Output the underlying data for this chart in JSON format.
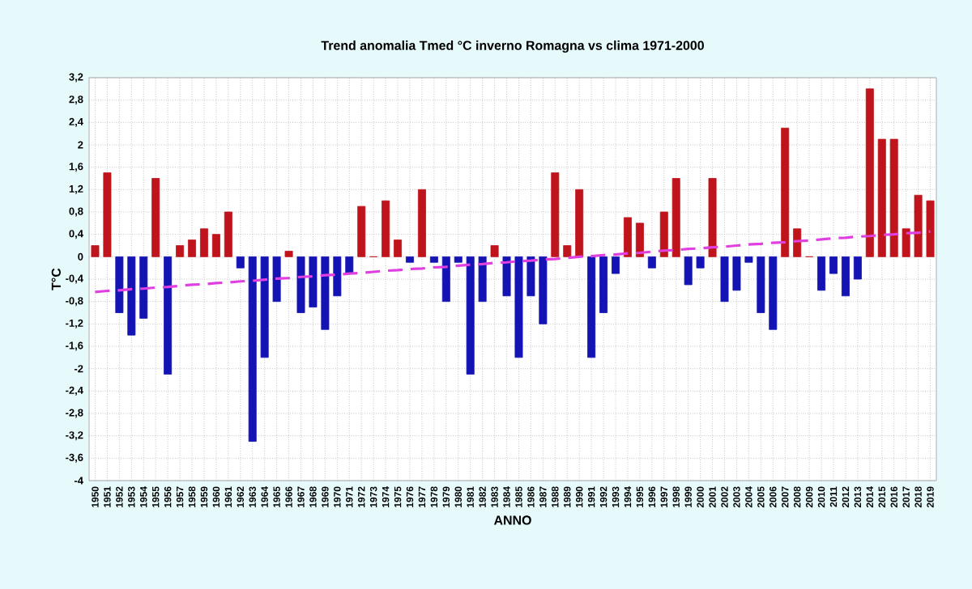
{
  "chart_data": {
    "type": "bar",
    "title": "Trend anomalia Tmed °C inverno Romagna vs clima 1971-2000",
    "xlabel": "ANNO",
    "ylabel": "T°C",
    "categories": [
      "1950",
      "1951",
      "1952",
      "1953",
      "1954",
      "1955",
      "1956",
      "1957",
      "1958",
      "1959",
      "1960",
      "1961",
      "1962",
      "1963",
      "1964",
      "1965",
      "1966",
      "1967",
      "1968",
      "1969",
      "1970",
      "1971",
      "1972",
      "1973",
      "1974",
      "1975",
      "1976",
      "1977",
      "1978",
      "1979",
      "1980",
      "1981",
      "1982",
      "1983",
      "1984",
      "1985",
      "1986",
      "1987",
      "1988",
      "1989",
      "1990",
      "1991",
      "1992",
      "1993",
      "1994",
      "1995",
      "1996",
      "1997",
      "1998",
      "1999",
      "2000",
      "2001",
      "2002",
      "2003",
      "2004",
      "2005",
      "2006",
      "2007",
      "2008",
      "2009",
      "2010",
      "2011",
      "2012",
      "2013",
      "2014",
      "2015",
      "2016",
      "2017",
      "2018",
      "2019"
    ],
    "series": [
      {
        "values": [
          0.2,
          1.5,
          -1.0,
          -1.4,
          -1.1,
          1.4,
          -2.1,
          0.2,
          0.3,
          0.5,
          0.4,
          0.8,
          -0.2,
          -3.3,
          -1.8,
          -0.8,
          0.1,
          -1.0,
          -0.9,
          -1.3,
          -0.7,
          -0.3,
          0.9,
          0.0,
          1.0,
          0.3,
          -0.1,
          1.2,
          -0.1,
          -0.8,
          -0.1,
          -2.1,
          -0.8,
          0.2,
          -0.7,
          -1.8,
          -0.7,
          -1.2,
          1.5,
          0.2,
          1.2,
          -1.8,
          -1.0,
          -0.3,
          0.7,
          0.6,
          -0.2,
          0.8,
          1.4,
          -0.5,
          -0.2,
          1.4,
          -0.8,
          -0.6,
          -0.1,
          -1.0,
          -1.3,
          2.3,
          0.5,
          0.0,
          -0.6,
          -0.3,
          -0.7,
          -0.4,
          3.0,
          2.1,
          2.1,
          0.5,
          1.1,
          1.0
        ],
        "colors": [
          "#c0141c",
          "#c0141c",
          "#1414b4",
          "#1414b4",
          "#1414b4",
          "#c0141c",
          "#1414b4",
          "#c0141c",
          "#c0141c",
          "#c0141c",
          "#c0141c",
          "#c0141c",
          "#1414b4",
          "#1414b4",
          "#1414b4",
          "#1414b4",
          "#c0141c",
          "#1414b4",
          "#1414b4",
          "#1414b4",
          "#1414b4",
          "#1414b4",
          "#c0141c",
          "#c0141c",
          "#c0141c",
          "#c0141c",
          "#1414b4",
          "#c0141c",
          "#1414b4",
          "#1414b4",
          "#1414b4",
          "#1414b4",
          "#1414b4",
          "#c0141c",
          "#1414b4",
          "#1414b4",
          "#1414b4",
          "#1414b4",
          "#c0141c",
          "#c0141c",
          "#c0141c",
          "#1414b4",
          "#1414b4",
          "#1414b4",
          "#c0141c",
          "#c0141c",
          "#1414b4",
          "#c0141c",
          "#c0141c",
          "#1414b4",
          "#1414b4",
          "#c0141c",
          "#1414b4",
          "#1414b4",
          "#1414b4",
          "#1414b4",
          "#1414b4",
          "#c0141c",
          "#c0141c",
          "#c0141c",
          "#1414b4",
          "#1414b4",
          "#1414b4",
          "#1414b4",
          "#c0141c",
          "#c0141c",
          "#c0141c",
          "#c0141c",
          "#c0141c",
          "#c0141c"
        ]
      },
      {
        "type": "line",
        "values": [
          -0.63,
          -0.61,
          -0.6,
          -0.58,
          -0.57,
          -0.55,
          -0.54,
          -0.52,
          -0.5,
          -0.49,
          -0.47,
          -0.46,
          -0.44,
          -0.43,
          -0.41,
          -0.39,
          -0.38,
          -0.36,
          -0.35,
          -0.33,
          -0.32,
          -0.3,
          -0.29,
          -0.27,
          -0.25,
          -0.24,
          -0.22,
          -0.21,
          -0.19,
          -0.18,
          -0.16,
          -0.14,
          -0.13,
          -0.11,
          -0.1,
          -0.08,
          -0.07,
          -0.05,
          -0.04,
          -0.02,
          0.0,
          0.01,
          0.03,
          0.04,
          0.06,
          0.07,
          0.09,
          0.11,
          0.12,
          0.14,
          0.15,
          0.17,
          0.18,
          0.2,
          0.22,
          0.23,
          0.25,
          0.26,
          0.28,
          0.29,
          0.31,
          0.33,
          0.34,
          0.36,
          0.37,
          0.39,
          0.4,
          0.42,
          0.43,
          0.45
        ],
        "color": "#e040e0",
        "line_style": "dashed"
      }
    ],
    "ylim": [
      -4,
      3.2
    ],
    "yticks": [
      -4,
      {
        "value": -3.6,
        "label": "-3,6"
      },
      {
        "value": -3.2,
        "label": "-3,2"
      },
      {
        "value": -2.8,
        "label": "-2,8"
      },
      {
        "value": -2.4,
        "label": "-2,4"
      },
      -2,
      {
        "value": -1.6,
        "label": "-1,6"
      },
      {
        "value": -1.2,
        "label": "-1,2"
      },
      {
        "value": -0.8,
        "label": "-0,8"
      },
      {
        "value": -0.4,
        "label": "-0,4"
      },
      0,
      {
        "value": 0.4,
        "label": "0,4"
      },
      {
        "value": 0.8,
        "label": "0,8"
      },
      {
        "value": 1.2,
        "label": "1,2"
      },
      {
        "value": 1.6,
        "label": "1,6"
      },
      2,
      {
        "value": 2.4,
        "label": "2,4"
      },
      {
        "value": 2.8,
        "label": "2,8"
      },
      {
        "value": 3.2,
        "label": "3,2"
      }
    ],
    "grid": true,
    "marker": "none"
  }
}
